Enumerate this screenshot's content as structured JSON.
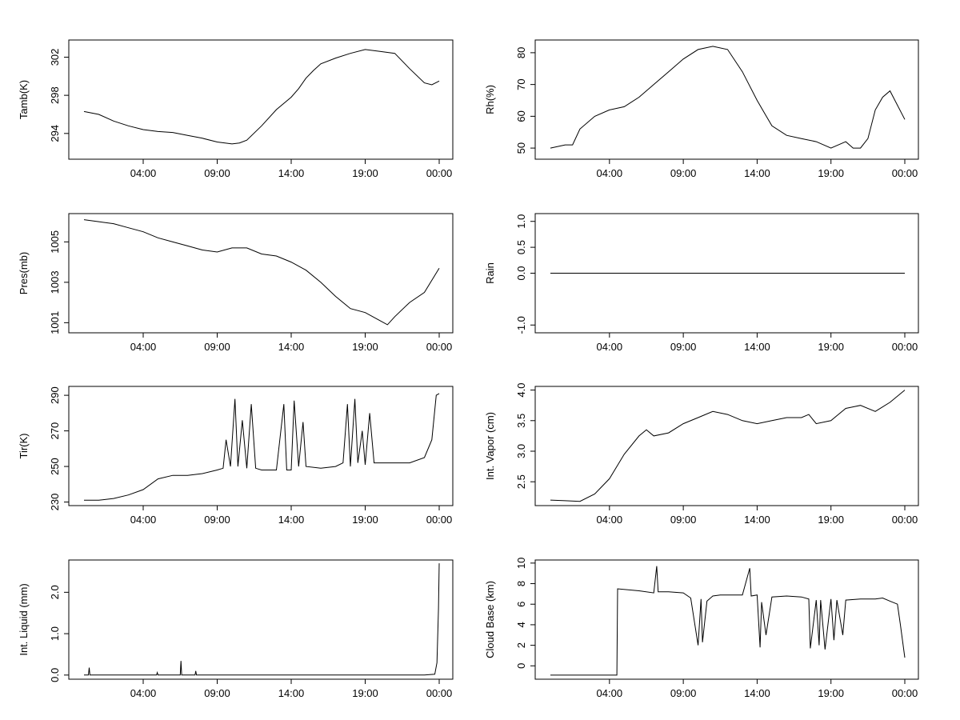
{
  "chart_data": [
    {
      "type": "line",
      "ylabel": "Tamb(K)",
      "x_ticks": [
        "04:00",
        "09:00",
        "14:00",
        "19:00",
        "00:00"
      ],
      "y_ticks": [
        294,
        298,
        302
      ],
      "ylim": [
        291.3,
        303.8
      ],
      "series": [
        {
          "name": "Tamb(K)",
          "x": [
            0,
            1,
            2,
            3,
            4,
            5,
            6,
            7,
            8,
            9,
            10,
            10.5,
            11,
            12,
            13,
            14,
            14.5,
            15,
            15.5,
            16,
            17,
            18,
            19,
            20,
            21,
            22,
            23,
            23.5,
            24
          ],
          "values": [
            296.3,
            296.0,
            295.3,
            294.8,
            294.4,
            294.2,
            294.1,
            293.8,
            293.5,
            293.1,
            292.9,
            293.0,
            293.3,
            294.8,
            296.5,
            297.8,
            298.7,
            299.8,
            300.6,
            301.3,
            301.9,
            302.4,
            302.8,
            302.6,
            302.4,
            300.8,
            299.3,
            299.1,
            299.5
          ]
        }
      ]
    },
    {
      "type": "line",
      "ylabel": "Rh(%)",
      "x_ticks": [
        "04:00",
        "09:00",
        "14:00",
        "19:00",
        "00:00"
      ],
      "y_ticks": [
        50,
        60,
        70,
        80
      ],
      "ylim": [
        46.5,
        84
      ],
      "series": [
        {
          "name": "Rh(%)",
          "x": [
            0,
            1,
            1.5,
            2,
            3,
            4,
            5,
            6,
            7,
            8,
            9,
            10,
            11,
            12,
            13,
            14,
            14.5,
            15,
            16,
            17,
            18,
            19,
            20,
            20.5,
            21,
            21.5,
            22,
            22.5,
            23,
            24
          ],
          "values": [
            50,
            51,
            51,
            56,
            60,
            62,
            63,
            66,
            70,
            74,
            78,
            81,
            82,
            81,
            74,
            65,
            61,
            57,
            54,
            53,
            52,
            50,
            52,
            50,
            50,
            53,
            62,
            66,
            68,
            59
          ]
        }
      ]
    },
    {
      "type": "line",
      "ylabel": "Pres(mb)",
      "x_ticks": [
        "04:00",
        "09:00",
        "14:00",
        "19:00",
        "00:00"
      ],
      "y_ticks": [
        1001,
        1003,
        1005
      ],
      "ylim": [
        1000.5,
        1006.4
      ],
      "series": [
        {
          "name": "Pres(mb)",
          "x": [
            0,
            1,
            2,
            3,
            4,
            5,
            6,
            7,
            8,
            9,
            10,
            11,
            12,
            13,
            14,
            15,
            16,
            17,
            18,
            19,
            20,
            20.5,
            21,
            22,
            23,
            24
          ],
          "values": [
            1006.1,
            1006.0,
            1005.9,
            1005.7,
            1005.5,
            1005.2,
            1005.0,
            1004.8,
            1004.6,
            1004.5,
            1004.7,
            1004.7,
            1004.4,
            1004.3,
            1004.0,
            1003.6,
            1003.0,
            1002.3,
            1001.7,
            1001.5,
            1001.1,
            1000.9,
            1001.3,
            1002.0,
            1002.5,
            1003.7
          ]
        }
      ]
    },
    {
      "type": "line",
      "ylabel": "Rain",
      "x_ticks": [
        "04:00",
        "09:00",
        "14:00",
        "19:00",
        "00:00"
      ],
      "y_ticks": [
        -1.0,
        0.0,
        0.5,
        1.0
      ],
      "y_tick_labels": [
        "-1.0",
        "0.0",
        "0.5",
        "1.0"
      ],
      "ylim": [
        -1.15,
        1.15
      ],
      "series": [
        {
          "name": "Rain",
          "x": [
            0,
            24
          ],
          "values": [
            0,
            0
          ]
        }
      ]
    },
    {
      "type": "line",
      "ylabel": "Tir(K)",
      "x_ticks": [
        "04:00",
        "09:00",
        "14:00",
        "19:00",
        "00:00"
      ],
      "y_ticks": [
        230,
        250,
        270,
        290
      ],
      "ylim": [
        228,
        295
      ],
      "series": [
        {
          "name": "Tir(K)",
          "x": [
            0,
            1,
            2,
            3,
            4,
            5,
            6,
            7,
            8,
            9,
            9.4,
            9.6,
            9.9,
            10.2,
            10.4,
            10.7,
            11,
            11.3,
            11.6,
            12,
            13,
            13.5,
            13.7,
            14,
            14.2,
            14.5,
            14.8,
            15,
            16,
            17,
            17.5,
            17.8,
            18,
            18.3,
            18.5,
            18.8,
            19,
            19.3,
            19.6,
            20,
            21,
            22,
            23,
            23.5,
            23.8,
            24
          ],
          "values": [
            231,
            231,
            232,
            234,
            237,
            243,
            245,
            245,
            246,
            248,
            249,
            265,
            250,
            288,
            250,
            276,
            249,
            285,
            249,
            248,
            248,
            285,
            248,
            248,
            287,
            250,
            275,
            250,
            249,
            250,
            252,
            285,
            250,
            288,
            252,
            270,
            251,
            280,
            252,
            252,
            252,
            252,
            255,
            265,
            290,
            291
          ]
        }
      ]
    },
    {
      "type": "line",
      "ylabel": "Int. Vapor (cm)",
      "x_ticks": [
        "04:00",
        "09:00",
        "14:00",
        "19:00",
        "00:00"
      ],
      "y_ticks": [
        2.5,
        3.0,
        3.5,
        4.0
      ],
      "y_tick_labels": [
        "2.5",
        "3.0",
        "3.5",
        "4.0"
      ],
      "ylim": [
        2.11,
        4.06
      ],
      "series": [
        {
          "name": "Int. Vapor (cm)",
          "x": [
            0,
            1,
            2,
            3,
            4,
            5,
            6,
            6.5,
            7,
            8,
            9,
            10,
            11,
            12,
            13,
            14,
            15,
            16,
            17,
            17.5,
            18,
            19,
            19.5,
            20,
            21,
            22,
            23,
            24
          ],
          "values": [
            2.2,
            2.19,
            2.18,
            2.3,
            2.55,
            2.95,
            3.25,
            3.35,
            3.25,
            3.3,
            3.45,
            3.55,
            3.65,
            3.6,
            3.5,
            3.45,
            3.5,
            3.55,
            3.55,
            3.6,
            3.45,
            3.5,
            3.6,
            3.7,
            3.75,
            3.65,
            3.8,
            4.0
          ]
        }
      ]
    },
    {
      "type": "line",
      "ylabel": "Int. Liquid (mm)",
      "x_ticks": [
        "04:00",
        "09:00",
        "14:00",
        "19:00",
        "00:00"
      ],
      "y_ticks": [
        0.0,
        1.0,
        2.0
      ],
      "y_tick_labels": [
        "0.0",
        "1.0",
        "2.0"
      ],
      "ylim": [
        -0.1,
        2.78
      ],
      "series": [
        {
          "name": "Int. Liquid (mm)",
          "x": [
            0,
            0.3,
            0.35,
            0.4,
            2,
            4,
            4.9,
            4.95,
            5,
            6,
            6.5,
            6.55,
            6.6,
            7.5,
            7.55,
            7.6,
            8,
            9,
            10,
            11,
            13,
            14,
            15,
            17,
            19,
            20,
            22,
            23,
            23.7,
            23.85,
            23.95,
            24
          ],
          "values": [
            0,
            0,
            0.18,
            0,
            0,
            0,
            0,
            0.06,
            0,
            0,
            0,
            0.34,
            0,
            0,
            0.1,
            0,
            0,
            0,
            0,
            0,
            0,
            0,
            0,
            0,
            0,
            0,
            0,
            0,
            0.02,
            0.3,
            1.6,
            2.7
          ]
        }
      ]
    },
    {
      "type": "line",
      "ylabel": "Cloud Base (km)",
      "x_ticks": [
        "04:00",
        "09:00",
        "14:00",
        "19:00",
        "00:00"
      ],
      "y_ticks": [
        0,
        2,
        4,
        6,
        8,
        10
      ],
      "ylim": [
        -1.3,
        10.3
      ],
      "series": [
        {
          "name": "Cloud Base (km)",
          "x": [
            0,
            4.5,
            4.55,
            6,
            7,
            7.2,
            7.3,
            8,
            9,
            9.5,
            10,
            10.2,
            10.3,
            10.6,
            11,
            11.5,
            12,
            13,
            13.5,
            13.6,
            14,
            14.2,
            14.3,
            14.6,
            15,
            16,
            17,
            17.5,
            17.6,
            18,
            18.2,
            18.3,
            18.6,
            19,
            19.2,
            19.4,
            19.8,
            20,
            21,
            22,
            22.5,
            23,
            23.5,
            23.7,
            24
          ],
          "values": [
            -0.9,
            -0.9,
            7.5,
            7.3,
            7.1,
            9.7,
            7.2,
            7.2,
            7.1,
            6.6,
            2.0,
            6.5,
            2.3,
            6.3,
            6.8,
            6.9,
            6.9,
            6.9,
            9.5,
            6.8,
            6.9,
            1.8,
            6.2,
            3.0,
            6.7,
            6.8,
            6.7,
            6.5,
            1.7,
            6.4,
            2.0,
            6.4,
            1.6,
            6.5,
            2.5,
            6.4,
            3.0,
            6.4,
            6.5,
            6.5,
            6.6,
            6.3,
            6.0,
            4.0,
            0.8
          ]
        }
      ]
    }
  ]
}
